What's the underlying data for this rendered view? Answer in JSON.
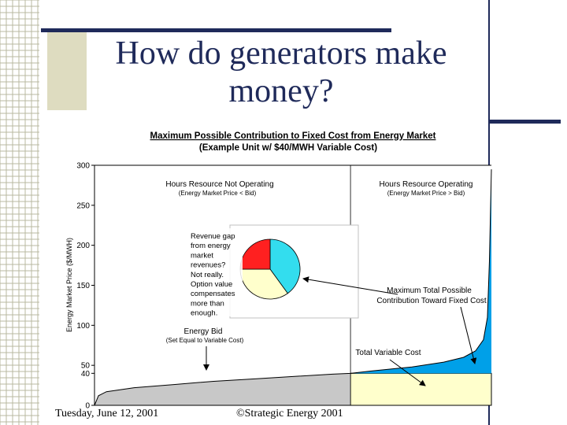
{
  "slide": {
    "title": "How do generators make money?",
    "footer_date": "Tuesday, June 12, 2001",
    "footer_copyright": "©Strategic Energy 2001"
  },
  "colors": {
    "title": "#1f2a5a",
    "accent_bars": "#1f2a5a",
    "deco_square": "#dedcc0",
    "variable_cost_fill": "#c8c8c8",
    "operating_fill": "#ffffcc",
    "contribution_fill": "#00a0e8",
    "pie_red": "#ff2020",
    "pie_cyan": "#33ddee",
    "pie_cream": "#ffffcc"
  },
  "chart_data": {
    "type": "area",
    "title": "Maximum Possible Contribution to Fixed Cost from Energy Market",
    "subtitle": "(Example Unit w/ $40/MWH Variable Cost)",
    "ylabel": "Energy Market Price ($/MWH)",
    "xlabel": "",
    "ylim": [
      0,
      300
    ],
    "yticks": [
      0,
      40,
      50,
      100,
      150,
      200,
      250,
      300
    ],
    "variable_cost": 40,
    "operating_fraction_start": 0.645,
    "price_curve": {
      "x": [
        0,
        0.01,
        0.03,
        0.1,
        0.2,
        0.3,
        0.4,
        0.5,
        0.6,
        0.645,
        0.7,
        0.8,
        0.88,
        0.93,
        0.96,
        0.98,
        0.99,
        0.995,
        1.0
      ],
      "y": [
        0,
        12,
        17,
        22,
        26,
        30,
        33,
        36,
        39,
        40,
        43,
        48,
        54,
        60,
        68,
        82,
        110,
        180,
        295
      ]
    },
    "region_labels": [
      {
        "label": "Hours Resource Not Operating",
        "note": "(Energy Market Price < Bid)"
      },
      {
        "label": "Hours Resource Operating",
        "note": "(Energy Market Price > Bid)"
      }
    ],
    "annotations": {
      "energy_bid": "Energy Bid",
      "energy_bid_note": "(Set Equal to Variable Cost)",
      "total_variable_cost": "Total Variable Cost",
      "max_contribution": "Maximum Total Possible Contribution Toward Fixed Cost",
      "revenue_gap_lines": [
        "Revenue gap",
        "from energy",
        "market",
        "revenues?",
        "Not really.",
        "Option value",
        "compensates",
        "more than",
        "enough."
      ]
    },
    "pie": {
      "type": "pie",
      "slices": [
        {
          "color": "#ff2020",
          "value": 0.25
        },
        {
          "color": "#33ddee",
          "value": 0.4
        },
        {
          "color": "#ffffcc",
          "value": 0.35
        }
      ]
    }
  }
}
